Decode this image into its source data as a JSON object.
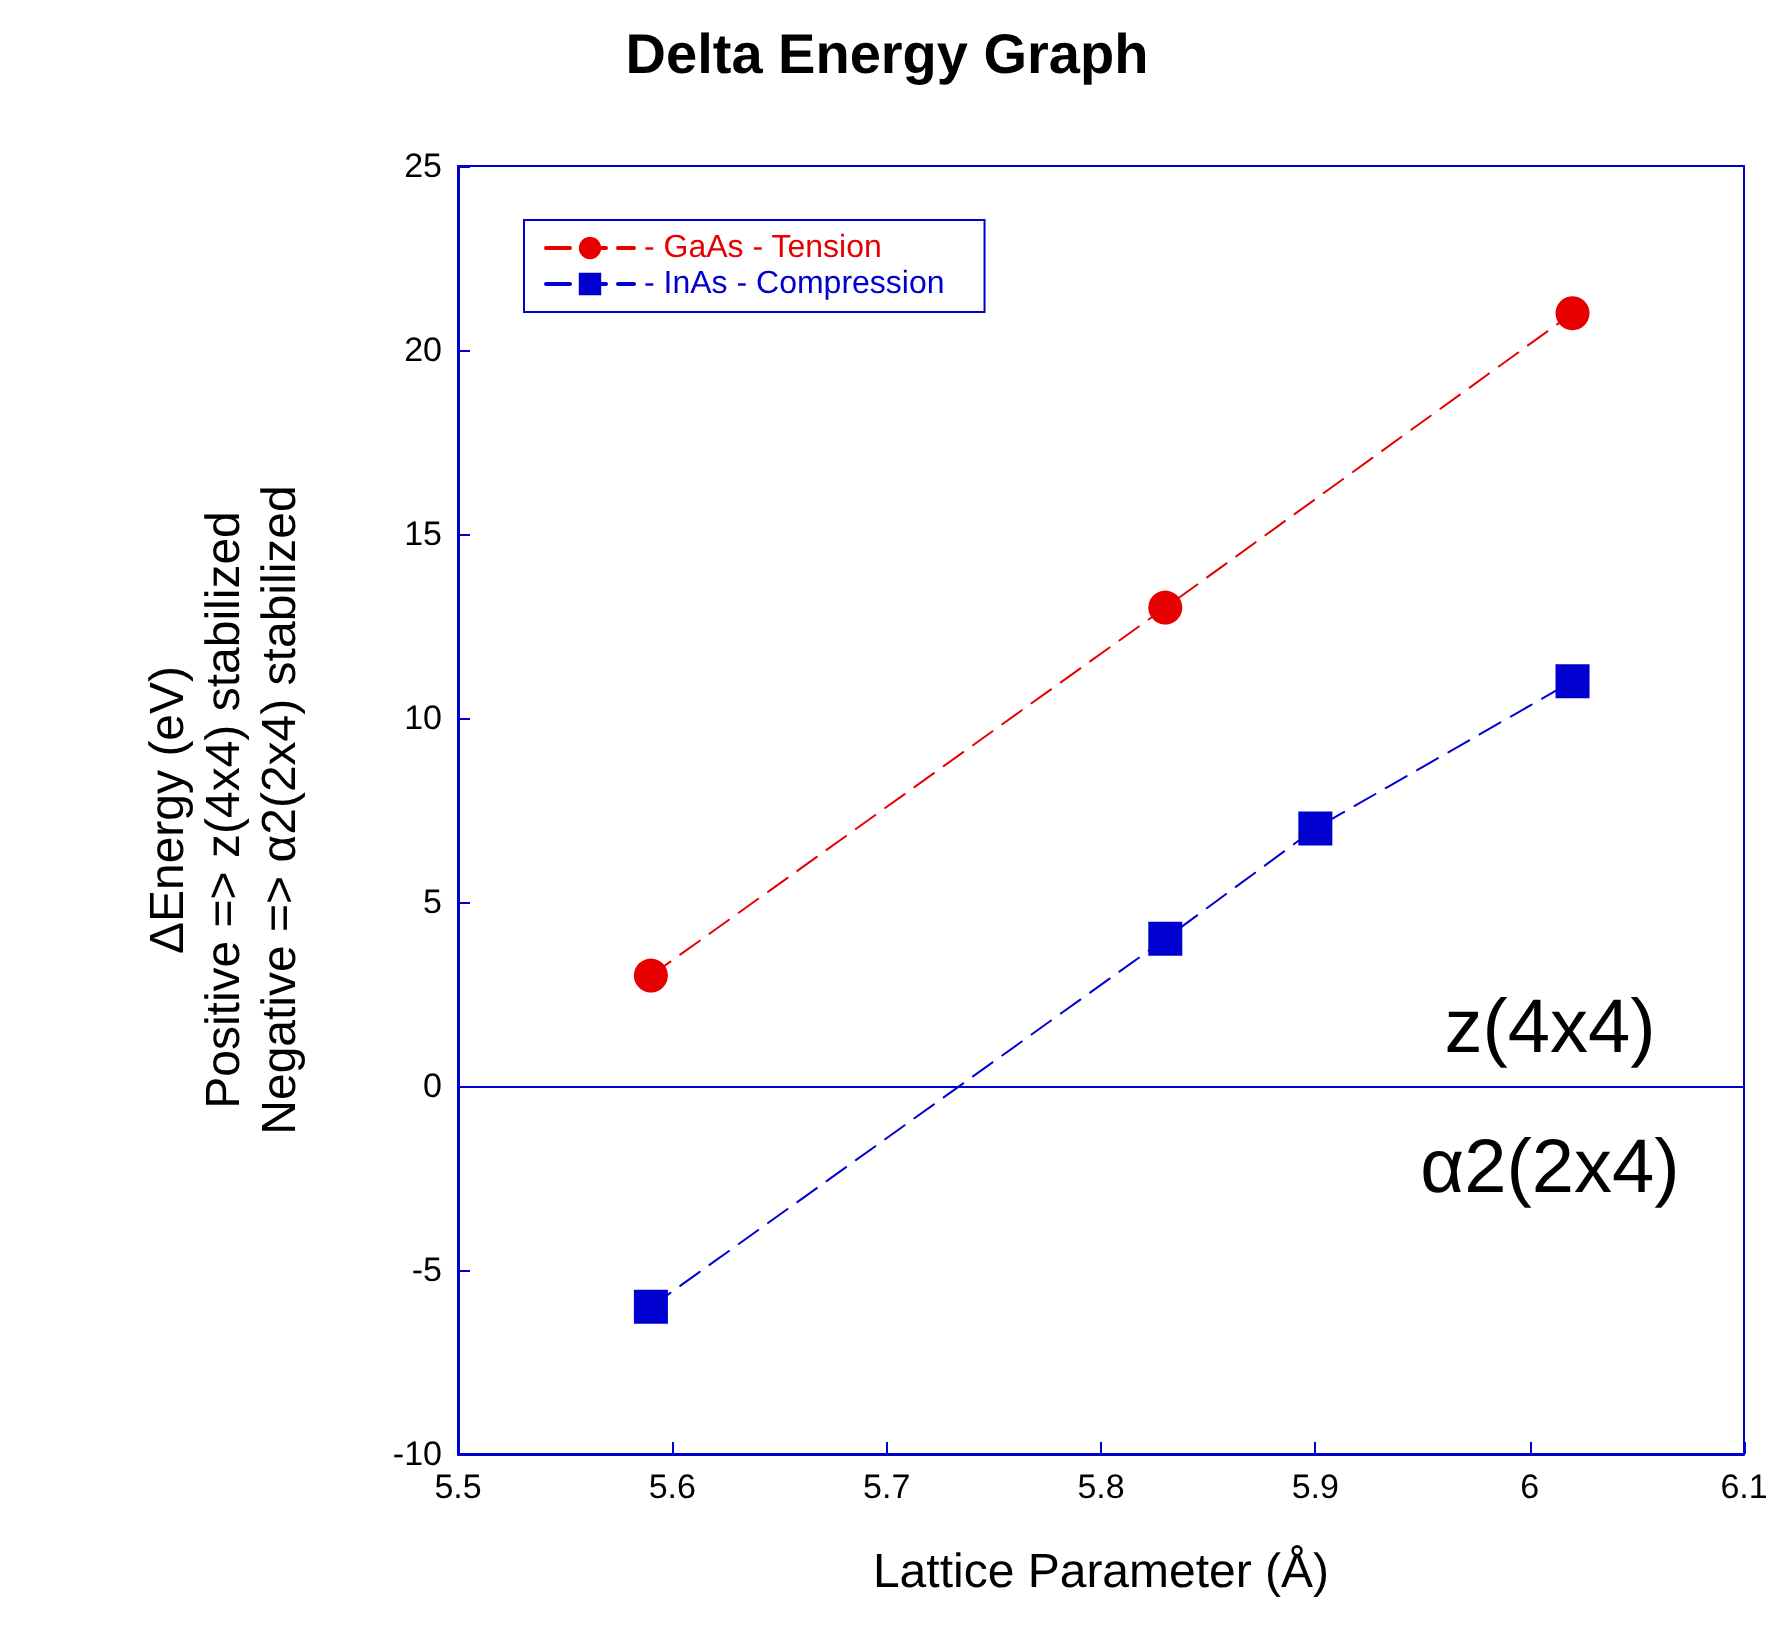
{
  "chart_data": {
    "type": "line",
    "title": "Delta Energy Graph",
    "xlabel": "Lattice Parameter (Å)",
    "ylabel": "ΔEnergy (eV)\nPositive => z(4x4) stabilized\nNegative => α2(2x4) stabilized",
    "xlim": [
      5.5,
      6.1
    ],
    "xticks": [
      5.5,
      5.6,
      5.7,
      5.8,
      5.9,
      6,
      6.1
    ],
    "ylim": [
      -10,
      25
    ],
    "yticks": [
      -10,
      -5,
      0,
      5,
      10,
      15,
      20,
      25
    ],
    "series": [
      {
        "name": "- GaAs - Tension",
        "color": "#e60000",
        "x": [
          5.59,
          5.83,
          6.02
        ],
        "values": [
          3,
          13,
          21
        ],
        "marker": "circle",
        "line_style": "dashed"
      },
      {
        "name": "- InAs - Compression",
        "color": "#0000d0",
        "x": [
          5.59,
          5.83,
          5.9,
          6.02
        ],
        "values": [
          -6,
          4,
          7,
          11
        ],
        "marker": "square",
        "line_style": "dashed"
      }
    ],
    "ref_lines": [
      {
        "axis": "y",
        "value": 0,
        "color": "#0000d0",
        "line_style": "solid"
      }
    ],
    "annotations": [
      "z(4x4)",
      "α2(2x4)"
    ],
    "grid": false,
    "legend": "top left"
  }
}
